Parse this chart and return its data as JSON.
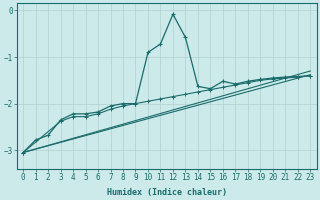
{
  "xlabel": "Humidex (Indice chaleur)",
  "background_color": "#cdeaea",
  "grid_color": "#b0d0d0",
  "line_color": "#1a6b6b",
  "xlim": [
    -0.5,
    23.5
  ],
  "ylim": [
    -3.4,
    0.15
  ],
  "yticks": [
    0,
    -1,
    -2,
    -3
  ],
  "xticks": [
    0,
    1,
    2,
    3,
    4,
    5,
    6,
    7,
    8,
    9,
    10,
    11,
    12,
    13,
    14,
    15,
    16,
    17,
    18,
    19,
    20,
    21,
    22,
    23
  ],
  "wiggly_x": [
    0,
    1,
    2,
    3,
    4,
    5,
    6,
    7,
    8,
    9,
    10,
    11,
    12,
    13,
    14,
    15,
    16,
    17,
    18,
    19,
    20,
    21,
    22,
    23
  ],
  "wiggly_y": [
    -3.05,
    -2.78,
    -2.68,
    -2.35,
    -2.22,
    -2.22,
    -2.18,
    -2.05,
    -2.0,
    -2.0,
    -0.9,
    -0.72,
    -0.08,
    -0.58,
    -1.63,
    -1.68,
    -1.52,
    -1.58,
    -1.52,
    -1.48,
    -1.45,
    -1.43,
    -1.42,
    -1.4
  ],
  "line1_x": [
    0,
    3,
    4,
    5,
    6,
    7,
    8,
    9,
    10,
    11,
    12,
    13,
    14,
    15,
    16,
    17,
    18,
    19,
    20,
    21,
    22,
    23
  ],
  "line1_y": [
    -3.05,
    -2.38,
    -2.28,
    -2.28,
    -2.22,
    -2.12,
    -2.05,
    -2.0,
    -1.95,
    -1.9,
    -1.85,
    -1.8,
    -1.75,
    -1.7,
    -1.65,
    -1.6,
    -1.55,
    -1.5,
    -1.47,
    -1.45,
    -1.43,
    -1.4
  ],
  "line2_x": [
    0,
    23
  ],
  "line2_y": [
    -3.05,
    -1.38
  ],
  "line3_x": [
    0,
    23
  ],
  "line3_y": [
    -3.05,
    -1.3
  ]
}
